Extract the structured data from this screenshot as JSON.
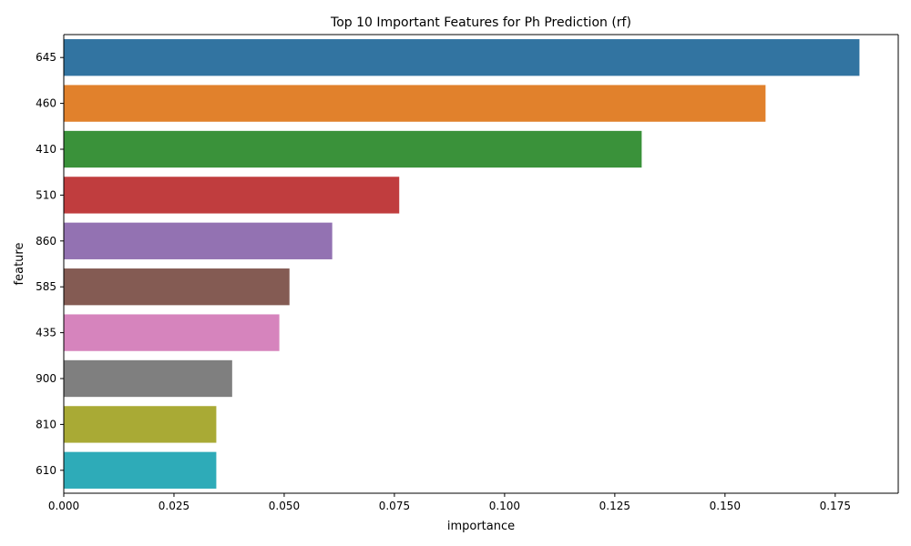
{
  "chart_data": {
    "type": "bar",
    "orientation": "horizontal",
    "title": "Top 10 Important Features for Ph Prediction (rf)",
    "xlabel": "importance",
    "ylabel": "feature",
    "xlim": [
      0,
      0.1893
    ],
    "xticks": [
      "0.000",
      "0.025",
      "0.050",
      "0.075",
      "0.100",
      "0.125",
      "0.150",
      "0.175"
    ],
    "grid": false,
    "categories": [
      "645",
      "460",
      "410",
      "510",
      "860",
      "585",
      "435",
      "900",
      "810",
      "610"
    ],
    "values": [
      0.1805,
      0.1592,
      0.1311,
      0.0761,
      0.0609,
      0.0512,
      0.0489,
      0.0382,
      0.0346,
      0.0346
    ],
    "colors": [
      "#3274a1",
      "#e1812c",
      "#3a923a",
      "#c03d3e",
      "#9372b2",
      "#845b53",
      "#d684bd",
      "#7f7f7f",
      "#a9aa35",
      "#2eabb8"
    ]
  }
}
